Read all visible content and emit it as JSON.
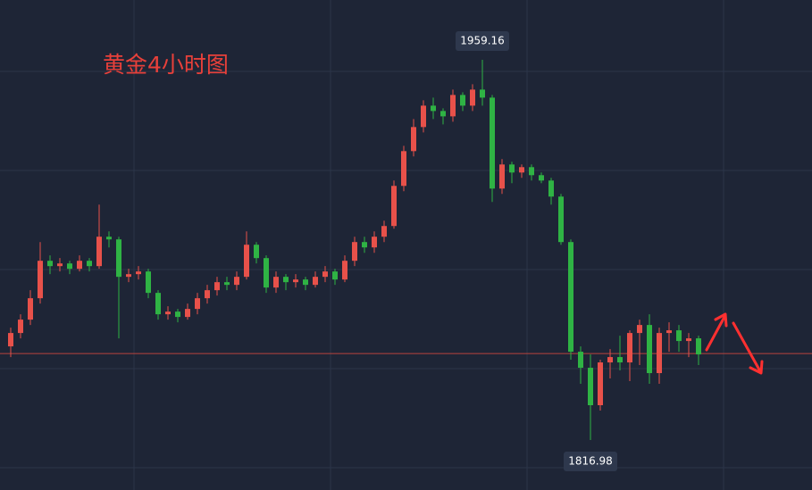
{
  "chart_data": {
    "type": "candlestick",
    "title": "黄金4小时图",
    "open": [
      1852,
      1857,
      1862,
      1870,
      1884,
      1882,
      1883,
      1881,
      1884,
      1882,
      1893,
      1892,
      1878,
      1879,
      1880,
      1872,
      1864,
      1865,
      1863,
      1866,
      1870,
      1873,
      1876,
      1875,
      1878,
      1890,
      1885,
      1874,
      1878,
      1876,
      1877,
      1875,
      1878,
      1880,
      1877,
      1884,
      1891,
      1889,
      1893,
      1897,
      1912,
      1925,
      1934,
      1942,
      1940,
      1938,
      1946,
      1942,
      1948,
      1945,
      1911,
      1920,
      1917,
      1919,
      1916,
      1914,
      1908,
      1891,
      1850,
      1844,
      1830,
      1846,
      1848,
      1846,
      1857,
      1860,
      1842,
      1857,
      1858,
      1854,
      1855
    ],
    "high": [
      1859,
      1864,
      1873,
      1891,
      1886,
      1885,
      1884,
      1886,
      1885,
      1905,
      1895,
      1893,
      1881,
      1882,
      1881,
      1873,
      1867,
      1866,
      1868,
      1872,
      1875,
      1878,
      1878,
      1880,
      1895,
      1891,
      1886,
      1880,
      1879,
      1879,
      1878,
      1880,
      1882,
      1881,
      1886,
      1893,
      1893,
      1895,
      1899,
      1914,
      1927,
      1937,
      1944,
      1945,
      1941,
      1948,
      1947,
      1950,
      1959.16,
      1946,
      1922,
      1921,
      1920,
      1920,
      1917,
      1915,
      1909,
      1892,
      1852,
      1849,
      1847,
      1851,
      1856,
      1858,
      1862,
      1864,
      1859,
      1861,
      1860,
      1857,
      1856
    ],
    "low": [
      1848,
      1855,
      1860,
      1868,
      1879,
      1880,
      1879,
      1880,
      1880,
      1881,
      1889,
      1855,
      1876,
      1877,
      1870,
      1862,
      1862,
      1861,
      1862,
      1864,
      1868,
      1871,
      1873,
      1873,
      1877,
      1883,
      1872,
      1872,
      1873,
      1874,
      1873,
      1874,
      1876,
      1875,
      1876,
      1882,
      1887,
      1887,
      1891,
      1896,
      1910,
      1923,
      1932,
      1937,
      1935,
      1936,
      1940,
      1940,
      1942,
      1906,
      1909,
      1913,
      1915,
      1914,
      1913,
      1905,
      1890,
      1847,
      1838,
      1816.98,
      1828,
      1840,
      1843,
      1839,
      1845,
      1838,
      1838,
      1850,
      1850,
      1848,
      1845
    ],
    "close": [
      1857,
      1862,
      1870,
      1884,
      1882,
      1883,
      1881,
      1884,
      1882,
      1893,
      1892,
      1878,
      1879,
      1880,
      1872,
      1864,
      1865,
      1863,
      1866,
      1870,
      1873,
      1876,
      1875,
      1878,
      1890,
      1885,
      1874,
      1878,
      1876,
      1877,
      1875,
      1878,
      1880,
      1877,
      1884,
      1891,
      1889,
      1893,
      1897,
      1912,
      1925,
      1934,
      1942,
      1940,
      1938,
      1946,
      1942,
      1948,
      1945,
      1911,
      1920,
      1917,
      1919,
      1916,
      1914,
      1908,
      1891,
      1850,
      1844,
      1830,
      1846,
      1848,
      1846,
      1857,
      1860,
      1842,
      1857,
      1858,
      1854,
      1855,
      1849
    ],
    "ylim": [
      1798.3,
      1981.5
    ],
    "price_line": 1849.3,
    "up_color": "#e8514a",
    "down_color": "#2fb344",
    "title_color": "#e8403a"
  }
}
